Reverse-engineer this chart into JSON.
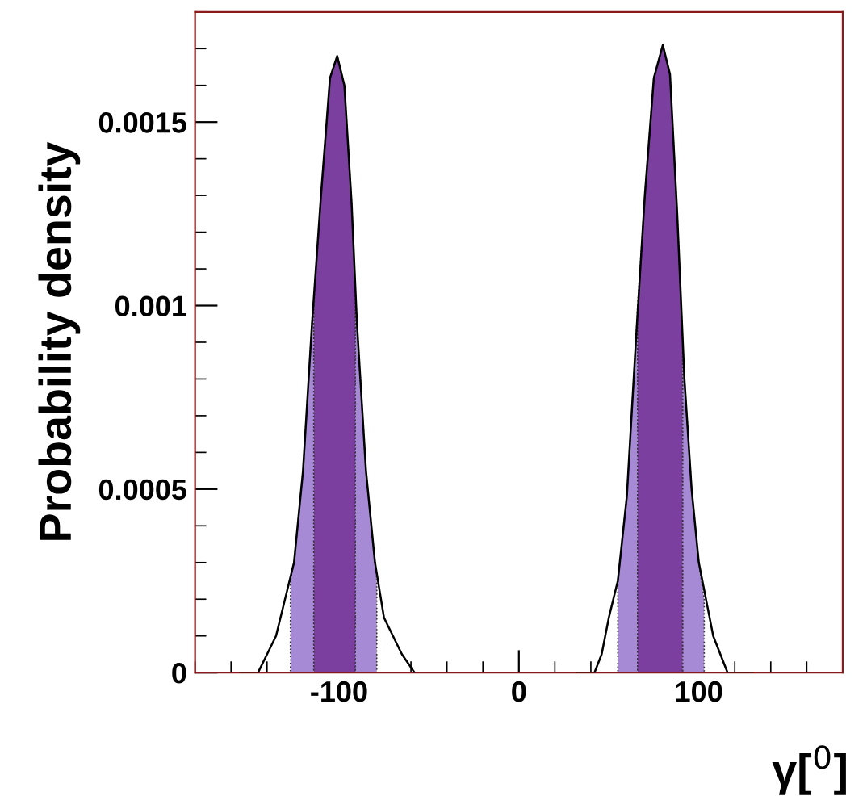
{
  "chart_data": {
    "type": "line",
    "xlabel": "γ[$^{0}$]",
    "ylabel": "Probability density",
    "xlim": [
      -180,
      180
    ],
    "ylim": [
      0,
      0.0018
    ],
    "xticks": [
      -100,
      0,
      100
    ],
    "yticks": [
      0,
      0.0005,
      0.001,
      0.0015
    ],
    "grid": false,
    "legend": false,
    "marker": "none",
    "line_style": "solid",
    "series": [
      {
        "type": "area",
        "color": "#a68ad6",
        "x": [
          -127,
          -125,
          -120,
          -115,
          -114
        ],
        "values": [
          0.00025,
          0.0003,
          0.00055,
          0.00095,
          0.001
        ]
      },
      {
        "type": "area",
        "color": "#a68ad6",
        "x": [
          -91,
          -90,
          -85,
          -80,
          -79
        ],
        "values": [
          0.00105,
          0.00095,
          0.00055,
          0.0003,
          0.00025
        ]
      },
      {
        "type": "area",
        "color": "#a68ad6",
        "x": [
          55,
          60,
          65,
          66
        ],
        "values": [
          0.00025,
          0.00048,
          0.0009,
          0.001
        ]
      },
      {
        "type": "area",
        "color": "#a68ad6",
        "x": [
          91,
          92,
          96,
          100,
          103
        ],
        "values": [
          0.0009,
          0.0008,
          0.0005,
          0.0003,
          0.0002
        ]
      },
      {
        "type": "area",
        "color": "#7b3fa0",
        "x": [
          -114,
          -110,
          -105,
          -101,
          -97,
          -93,
          -91
        ],
        "values": [
          0.001,
          0.0013,
          0.00162,
          0.00168,
          0.0016,
          0.00128,
          0.00105
        ]
      },
      {
        "type": "area",
        "color": "#7b3fa0",
        "x": [
          66,
          70,
          75,
          80,
          84,
          88,
          91
        ],
        "values": [
          0.001,
          0.0013,
          0.00162,
          0.00171,
          0.00163,
          0.00125,
          0.0009
        ]
      },
      {
        "color": "#000000",
        "x": [
          -155,
          -145,
          -140,
          -135,
          -130,
          -125,
          -120,
          -115,
          -110,
          -105,
          -101,
          -97,
          -93,
          -90,
          -85,
          -80,
          -75,
          -70,
          -65,
          -58
        ],
        "values": [
          0,
          0,
          5e-05,
          0.0001,
          0.0002,
          0.0003,
          0.00055,
          0.00095,
          0.0013,
          0.00162,
          0.00168,
          0.0016,
          0.00128,
          0.00095,
          0.00055,
          0.0003,
          0.00015,
          0.0001,
          5e-05,
          0
        ]
      },
      {
        "color": "#000000",
        "x": [
          32,
          38,
          42,
          46,
          50,
          55,
          60,
          65,
          70,
          75,
          80,
          84,
          88,
          92,
          96,
          100,
          104,
          108,
          112,
          116,
          121,
          130
        ],
        "values": [
          0,
          0,
          0,
          5e-05,
          0.00015,
          0.00025,
          0.00048,
          0.0009,
          0.0013,
          0.00162,
          0.00171,
          0.00163,
          0.00125,
          0.0008,
          0.0005,
          0.0003,
          0.0002,
          0.0001,
          5e-05,
          0,
          0,
          0
        ]
      }
    ]
  }
}
